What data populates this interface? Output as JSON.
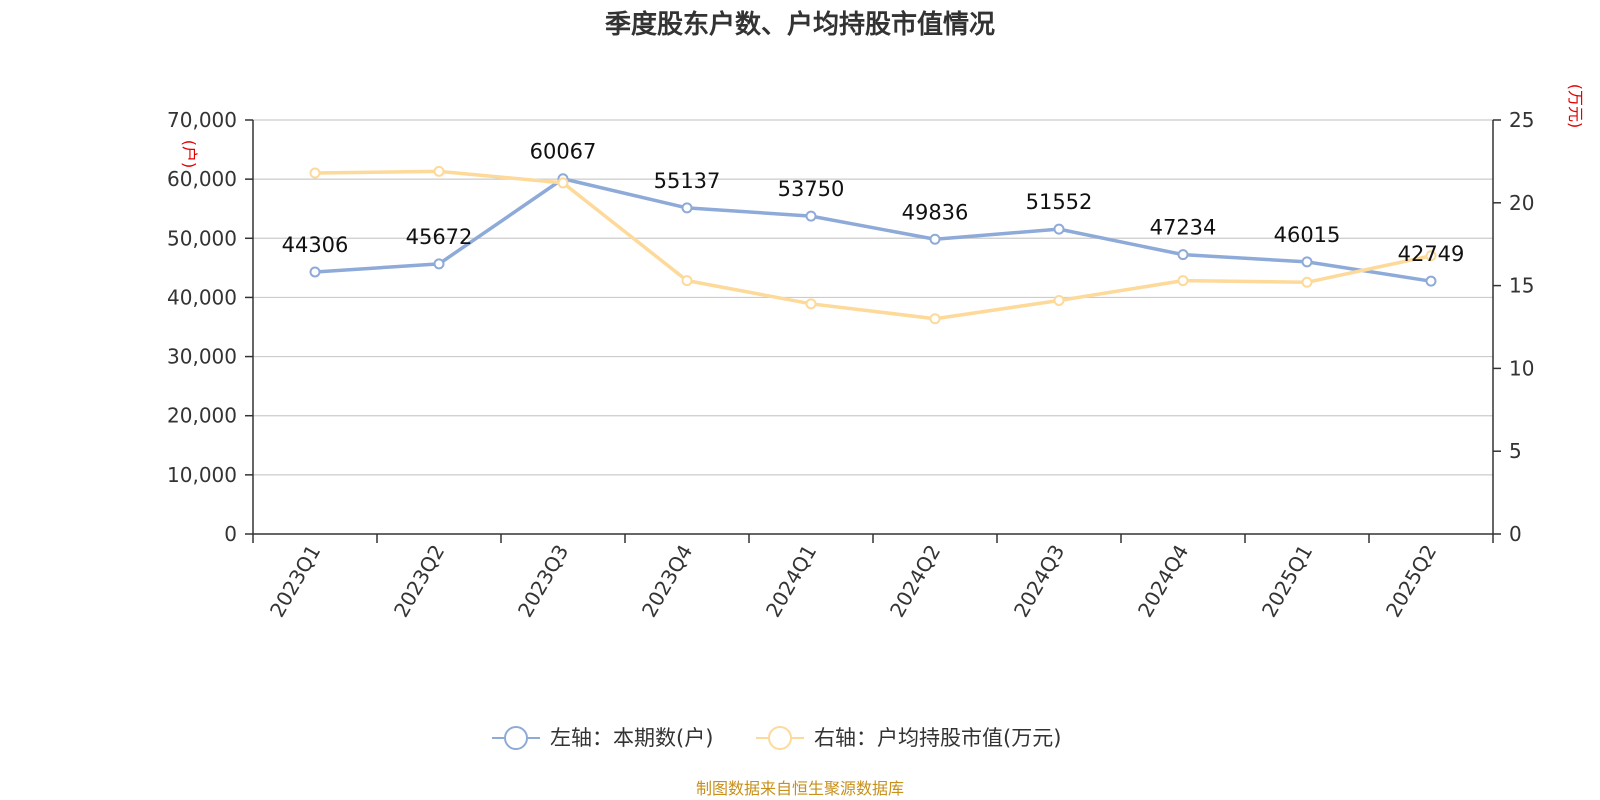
{
  "chart_data": {
    "type": "line",
    "title": "季度股东户数、户均持股市值情况",
    "categories": [
      "2023Q1",
      "2023Q2",
      "2023Q3",
      "2023Q4",
      "2024Q1",
      "2024Q2",
      "2024Q3",
      "2024Q4",
      "2025Q1",
      "2025Q2"
    ],
    "left_axis": {
      "unit": "(户)",
      "ylim": [
        0,
        70000
      ],
      "ticks": [
        "0",
        "10,000",
        "20,000",
        "30,000",
        "40,000",
        "50,000",
        "60,000",
        "70,000"
      ]
    },
    "right_axis": {
      "unit": "(万元)",
      "ylim": [
        0,
        25
      ],
      "ticks": [
        "0",
        "5",
        "10",
        "15",
        "20",
        "25"
      ]
    },
    "series": [
      {
        "name": "左轴：本期数(户)",
        "axis": "left",
        "color": "#8eaad8",
        "values": [
          44306,
          45672,
          60067,
          55137,
          53750,
          49836,
          51552,
          47234,
          46015,
          42749
        ],
        "labels": [
          "44306",
          "45672",
          "60067",
          "55137",
          "53750",
          "49836",
          "51552",
          "47234",
          "46015",
          "42749"
        ]
      },
      {
        "name": "右轴：户均持股市值(万元)",
        "axis": "right",
        "color": "#fdd99a",
        "values": [
          21.8,
          21.9,
          21.2,
          15.3,
          13.9,
          13.0,
          14.1,
          15.3,
          15.2,
          16.8
        ]
      }
    ],
    "grid": true,
    "legend_position": "bottom"
  },
  "source_text": "制图数据来自恒生聚源数据库"
}
